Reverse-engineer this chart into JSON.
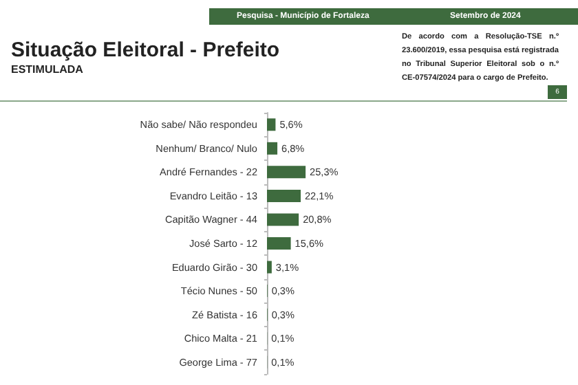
{
  "chart_data": {
    "type": "bar",
    "orientation": "horizontal",
    "title": "Situação Eleitoral - Prefeito",
    "subtitle": "ESTIMULADA",
    "categories": [
      "Não sabe/ Não respondeu",
      "Nenhum/ Branco/ Nulo",
      "André Fernandes - 22",
      "Evandro Leitão - 13",
      "Capitão Wagner - 44",
      "José Sarto - 12",
      "Eduardo Girão - 30",
      "Técio Nunes - 50",
      "Zé Batista - 16",
      "Chico Malta - 21",
      "George Lima - 77"
    ],
    "values": [
      5.6,
      6.8,
      25.3,
      22.1,
      20.8,
      15.6,
      3.1,
      0.3,
      0.3,
      0.1,
      0.1
    ],
    "value_labels": [
      "5,6%",
      "6,8%",
      "25,3%",
      "22,1%",
      "20,8%",
      "15,6%",
      "3,1%",
      "0,3%",
      "0,3%",
      "0,1%",
      "0,1%"
    ],
    "color": "#3e6b3e",
    "annotations": [
      "Pesquisa - Município de Fortaleza",
      "Setembro de 2024",
      "De acordo com a Resolução-TSE n.º 23.600/2019, essa pesquisa está registrada no Tribunal Superior Eleitoral sob o n.º CE-07574/2024 para o cargo de Prefeito.",
      "6"
    ]
  }
}
